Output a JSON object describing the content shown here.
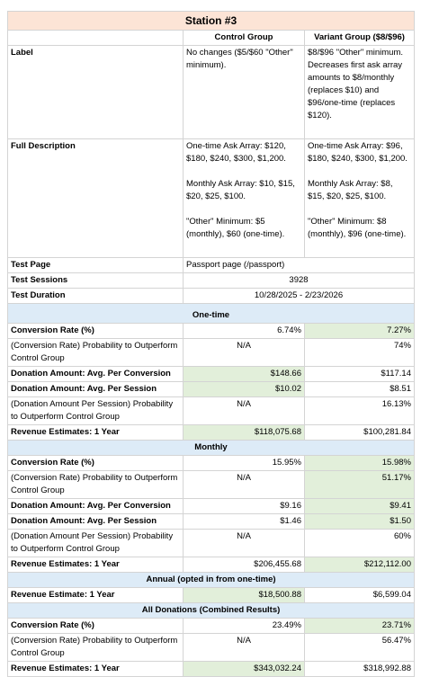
{
  "title": "Station #3",
  "columns": [
    "Control Group",
    "Variant Group ($8/$96)"
  ],
  "label_row": {
    "label": "Label",
    "control": "No changes ($5/$60 \"Other\" minimum).",
    "variant": "$8/$96 \"Other\" minimum. Decreases first ask array amounts to $8/monthly (replaces $10) and $96/one-time (replaces $120)."
  },
  "description_row": {
    "label": "Full Description",
    "control": [
      "One-time Ask Array: $120, $180, $240, $300, $1,200.",
      "Monthly Ask Array: $10, $15, $20, $25, $100.",
      "\"Other\" Minimum: $5 (monthly), $60 (one-time)."
    ],
    "variant": [
      "One-time Ask Array: $96, $180, $240, $300, $1,200.",
      "Monthly Ask Array: $8, $15, $20, $25, $100.",
      "\"Other\" Minimum: $8 (monthly), $96 (one-time)."
    ]
  },
  "test_page": {
    "label": "Test Page",
    "value": "Passport page (/passport)"
  },
  "test_sessions": {
    "label": "Test Sessions",
    "value": "3928"
  },
  "test_duration": {
    "label": "Test Duration",
    "value": "10/28/2025 - 2/23/2026"
  },
  "sections": [
    {
      "title": "One-time",
      "rows": [
        {
          "label": "Conversion Rate (%)",
          "control": "6.74%",
          "variant": "7.27%"
        },
        {
          "label": "(Conversion Rate) Probability to Outperform Control Group",
          "control": "N/A",
          "variant": "74%"
        },
        {
          "label": "Donation Amount: Avg. Per Conversion",
          "control": "$148.66",
          "variant": "$117.14"
        },
        {
          "label": "Donation Amount: Avg. Per Session",
          "control": "$10.02",
          "variant": "$8.51"
        },
        {
          "label": "(Donation Amount Per Session) Probability to Outperform Control Group",
          "control": "N/A",
          "variant": "16.13%"
        },
        {
          "label": "Revenue Estimates: 1 Year",
          "control": "$118,075.68",
          "variant": "$100,281.84"
        }
      ]
    },
    {
      "title": "Monthly",
      "rows": [
        {
          "label": "Conversion Rate (%)",
          "control": "15.95%",
          "variant": "15.98%"
        },
        {
          "label": "(Conversion Rate) Probability to Outperform Control Group",
          "control": "N/A",
          "variant": "51.17%"
        },
        {
          "label": "Donation Amount: Avg. Per Conversion",
          "control": "$9.16",
          "variant": "$9.41"
        },
        {
          "label": "Donation Amount: Avg. Per Session",
          "control": "$1.46",
          "variant": "$1.50"
        },
        {
          "label": "(Donation Amount Per Session) Probability to Outperform Control Group",
          "control": "N/A",
          "variant": "60%"
        },
        {
          "label": "Revenue Estimates: 1 Year",
          "control": "$206,455.68",
          "variant": "$212,112.00"
        }
      ]
    },
    {
      "title": "Annual (opted in from one-time)",
      "rows": [
        {
          "label": "Revenue Estimate: 1 Year",
          "control": "$18,500.88",
          "variant": "$6,599.04"
        }
      ]
    },
    {
      "title": "All Donations (Combined Results)",
      "rows": [
        {
          "label": "Conversion Rate (%)",
          "control": "23.49%",
          "variant": "23.71%"
        },
        {
          "label": "(Conversion Rate) Probability to Outperform Control Group",
          "control": "N/A",
          "variant": "56.47%"
        },
        {
          "label": "Revenue Estimates: 1 Year",
          "control": "$343,032.24",
          "variant": "$318,992.88"
        }
      ]
    }
  ]
}
